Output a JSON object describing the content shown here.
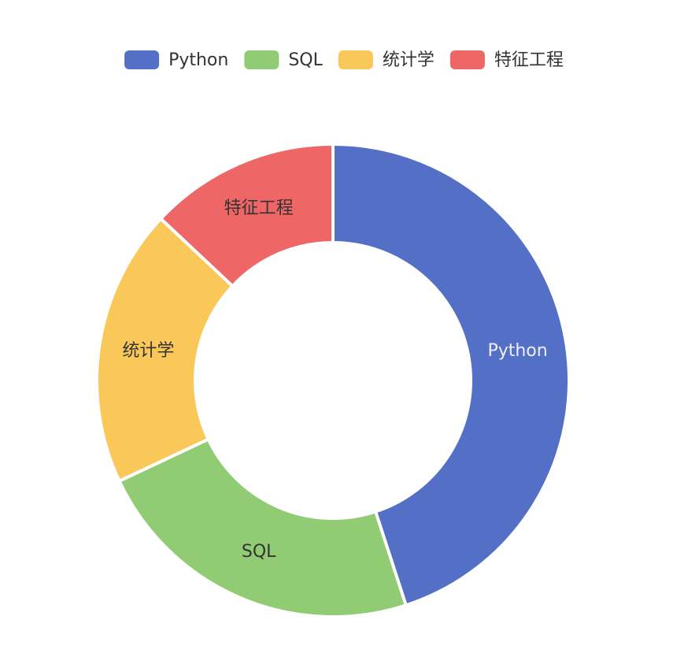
{
  "chart_data": {
    "type": "pie",
    "categories": [
      "Python",
      "SQL",
      "统计学",
      "特征工程"
    ],
    "values": [
      45,
      23,
      19,
      13
    ],
    "colors": [
      "#5470c6",
      "#91cc75",
      "#fac858",
      "#ee6666"
    ],
    "legend": "top"
  }
}
